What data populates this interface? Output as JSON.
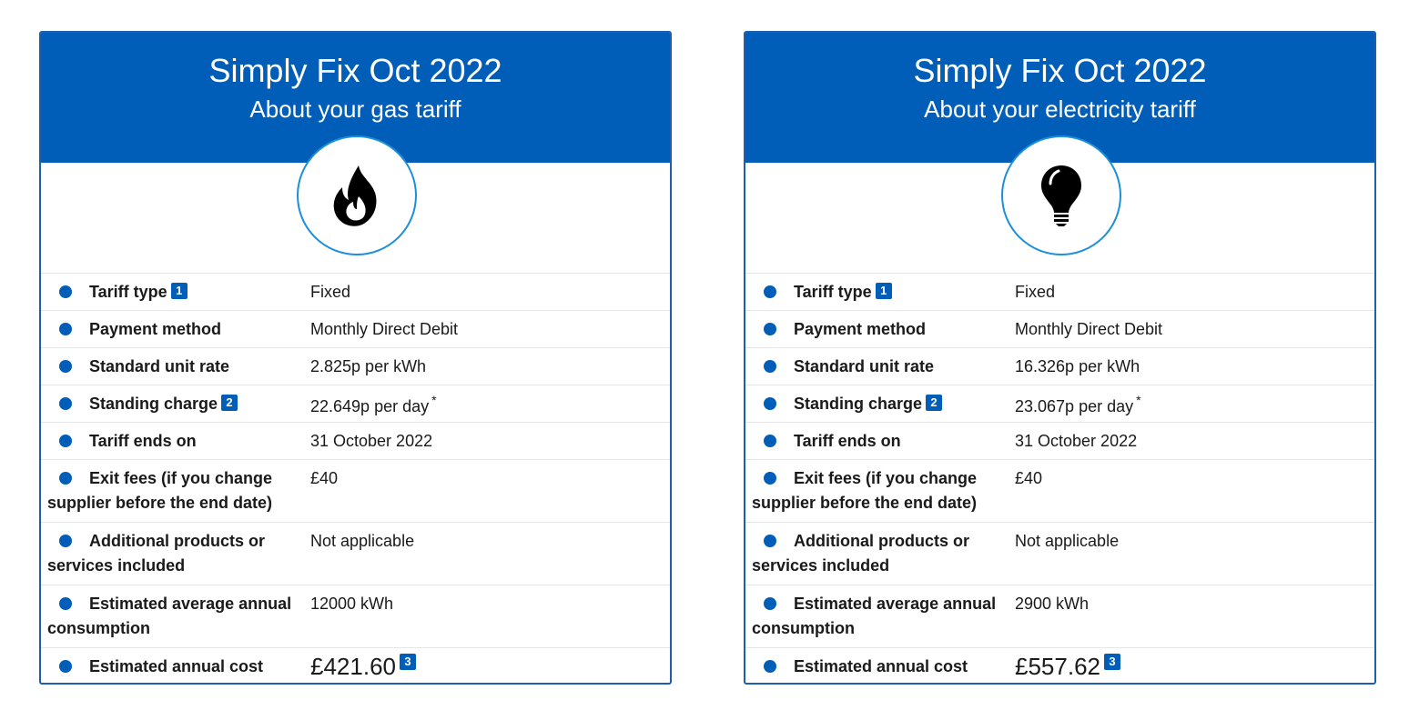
{
  "gas": {
    "title": "Simply Fix Oct 2022",
    "subtitle": "About your gas tariff",
    "icon": "flame-icon",
    "rows": {
      "tariff_type": {
        "label": "Tariff type",
        "note": "1",
        "value": "Fixed"
      },
      "payment_method": {
        "label": "Payment method",
        "value": "Monthly Direct Debit"
      },
      "unit_rate": {
        "label": "Standard unit rate",
        "value": "2.825p per kWh"
      },
      "standing_charge": {
        "label": "Standing charge",
        "note": "2",
        "value": "22.649p per day",
        "asterisk": "*"
      },
      "tariff_ends": {
        "label": "Tariff ends on",
        "value": "31 October 2022"
      },
      "exit_fees": {
        "label": "Exit fees (if you change supplier before the end date)",
        "value": "£40"
      },
      "additional": {
        "label": "Additional products or services included",
        "value": "Not applicable"
      },
      "consumption": {
        "label": "Estimated average annual consumption",
        "value": "12000 kWh"
      },
      "annual_cost": {
        "label": "Estimated annual cost",
        "value": "£421.60",
        "note": "3"
      }
    }
  },
  "electricity": {
    "title": "Simply Fix Oct 2022",
    "subtitle": "About your electricity tariff",
    "icon": "lightbulb-icon",
    "rows": {
      "tariff_type": {
        "label": "Tariff type",
        "note": "1",
        "value": "Fixed"
      },
      "payment_method": {
        "label": "Payment method",
        "value": "Monthly Direct Debit"
      },
      "unit_rate": {
        "label": "Standard unit rate",
        "value": "16.326p per kWh"
      },
      "standing_charge": {
        "label": "Standing charge",
        "note": "2",
        "value": "23.067p per day",
        "asterisk": "*"
      },
      "tariff_ends": {
        "label": "Tariff ends on",
        "value": "31 October 2022"
      },
      "exit_fees": {
        "label": "Exit fees (if you change supplier before the end date)",
        "value": "£40"
      },
      "additional": {
        "label": "Additional products or services included",
        "value": "Not applicable"
      },
      "consumption": {
        "label": "Estimated average annual consumption",
        "value": "2900 kWh"
      },
      "annual_cost": {
        "label": "Estimated annual cost",
        "value": "£557.62",
        "note": "3"
      }
    }
  },
  "colors": {
    "brand_blue": "#005eb8",
    "circle_border": "#1c8fd9"
  }
}
